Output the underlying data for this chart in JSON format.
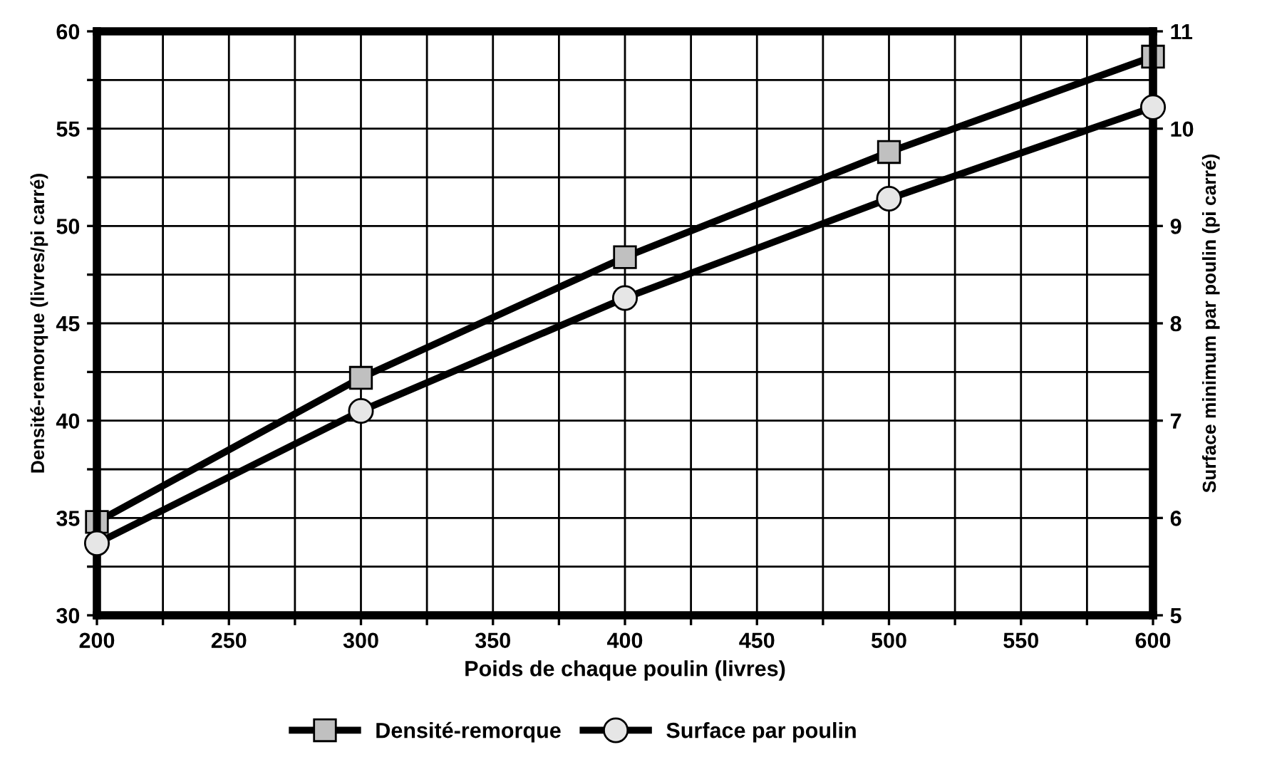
{
  "chart_data": {
    "type": "line",
    "xlabel": "Poids de chaque poulin (livres)",
    "ylabel": "Densité-remorque (livres/pi carré)",
    "y2label": "Surface minimum par poulin (pi carré)",
    "x": [
      200,
      300,
      400,
      500,
      600
    ],
    "series": [
      {
        "name": "Densité-remorque",
        "color": "#000000",
        "marker": "square",
        "values": [
          34.8,
          42.2,
          48.4,
          53.8,
          58.7
        ]
      },
      {
        "name": "Surface par poulin",
        "color": "#000000",
        "marker": "circle",
        "axis": "y2",
        "values": [
          5.74,
          7.1,
          8.26,
          9.28,
          10.22
        ]
      }
    ],
    "xlim": [
      200,
      600
    ],
    "xticks": [
      200,
      {
        "value": 225,
        "label": null
      },
      250,
      {
        "value": 275,
        "label": null
      },
      300,
      {
        "value": 325,
        "label": null
      },
      350,
      {
        "value": 375,
        "label": null
      },
      400,
      {
        "value": 425,
        "label": null
      },
      450,
      {
        "value": 475,
        "label": null
      },
      500,
      {
        "value": 525,
        "label": null
      },
      550,
      {
        "value": 575,
        "label": null
      },
      600
    ],
    "ylim": [
      30,
      60
    ],
    "yticks": [
      30,
      {
        "value": 32.5,
        "label": null
      },
      35,
      {
        "value": 37.5,
        "label": null
      },
      40,
      {
        "value": 42.5,
        "label": null
      },
      45,
      {
        "value": 47.5,
        "label": null
      },
      50,
      {
        "value": 52.5,
        "label": null
      },
      55,
      {
        "value": 57.5,
        "label": null
      },
      60
    ],
    "y2lim": [
      5,
      11
    ],
    "y2ticks": [
      5,
      6,
      7,
      8,
      9,
      10,
      11
    ],
    "grid": true,
    "legend": "bottom",
    "line_style": "solid"
  }
}
